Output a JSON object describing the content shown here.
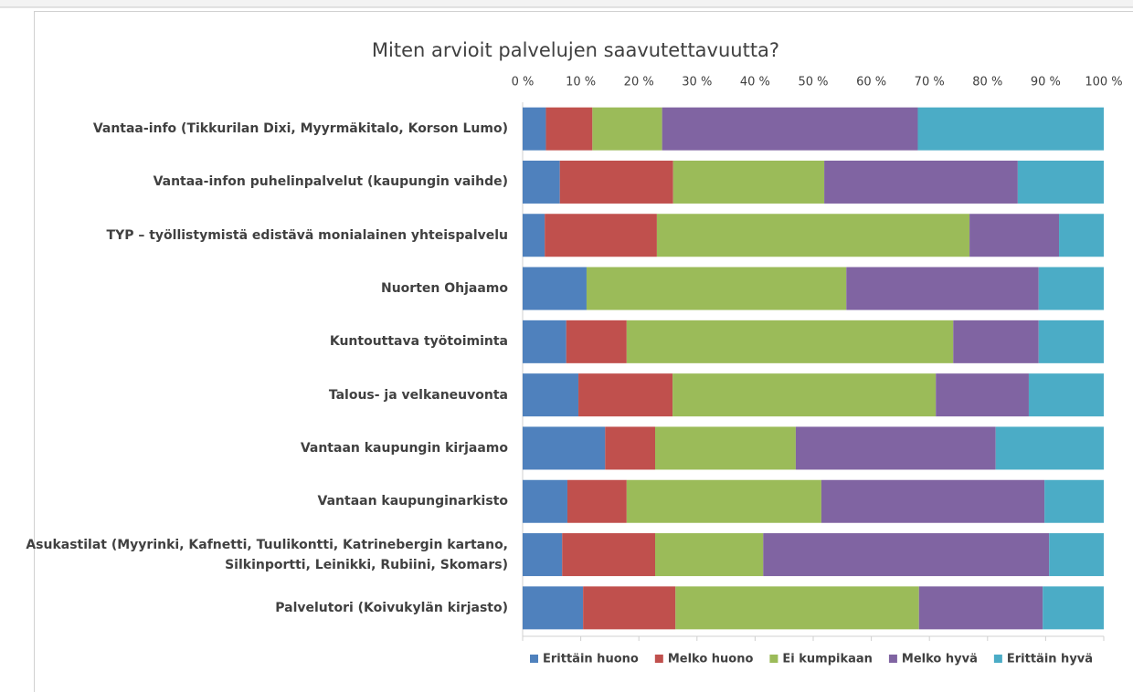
{
  "chart_data": {
    "type": "stacked_bar_horizontal",
    "title": "Miten arvioit palvelujen saavutettavuutta?",
    "categories": [
      "Vantaa-info (Tikkurilan Dixi, Myyrmäkitalo, Korson Lumo)",
      "Vantaa-infon puhelinpalvelut (kaupungin vaihde)",
      "TYP – työllistymistä edistävä monialainen yhteispalvelu",
      "Nuorten Ohjaamo",
      "Kuntouttava työtoiminta",
      "Talous- ja velkaneuvonta",
      "Vantaan kaupungin kirjaamo",
      "Vantaan kaupunginarkisto",
      "Asukastilat (Myyrinki, Kafnetti, Tuulikontti, Katrinebergin kartano, Silkinportti, Leinikki, Rubiini, Skomars)",
      "Palvelutori (Koivukylän kirjasto)"
    ],
    "series": [
      {
        "name": "Erittäin huono",
        "color": "#4f81bd",
        "values": [
          4,
          6.4,
          3.8,
          11,
          7.5,
          9.6,
          14.2,
          7.7,
          6.8,
          10.4
        ]
      },
      {
        "name": "Melko huono",
        "color": "#c0504d",
        "values": [
          8,
          19.5,
          19.3,
          0,
          10.4,
          16.2,
          8.6,
          10.2,
          16.0,
          15.9
        ]
      },
      {
        "name": "Ei kumpikaan",
        "color": "#9bbb59",
        "values": [
          12,
          26.0,
          53.8,
          44.7,
          56.2,
          45.3,
          24.2,
          33.5,
          18.6,
          41.9
        ]
      },
      {
        "name": "Melko hyvä",
        "color": "#8064a2",
        "values": [
          44,
          33.3,
          15.4,
          33.1,
          14.7,
          16.0,
          34.4,
          38.4,
          49.2,
          21.3
        ]
      },
      {
        "name": "Erittäin hyvä",
        "color": "#4bacc6",
        "values": [
          32,
          14.8,
          7.7,
          11.2,
          11.2,
          12.9,
          18.6,
          10.2,
          9.4,
          10.5
        ]
      }
    ],
    "xlim": [
      0,
      100
    ],
    "xticks": [
      {
        "value": 0,
        "label": "0 %"
      },
      {
        "value": 10,
        "label": "10 %"
      },
      {
        "value": 20,
        "label": "20 %"
      },
      {
        "value": 30,
        "label": "30 %"
      },
      {
        "value": 40,
        "label": "40 %"
      },
      {
        "value": 50,
        "label": "50 %"
      },
      {
        "value": 60,
        "label": "60 %"
      },
      {
        "value": 70,
        "label": "70 %"
      },
      {
        "value": 80,
        "label": "80 %"
      },
      {
        "value": 90,
        "label": "90 %"
      },
      {
        "value": 100,
        "label": "100 %"
      }
    ],
    "legend": "bottom"
  }
}
